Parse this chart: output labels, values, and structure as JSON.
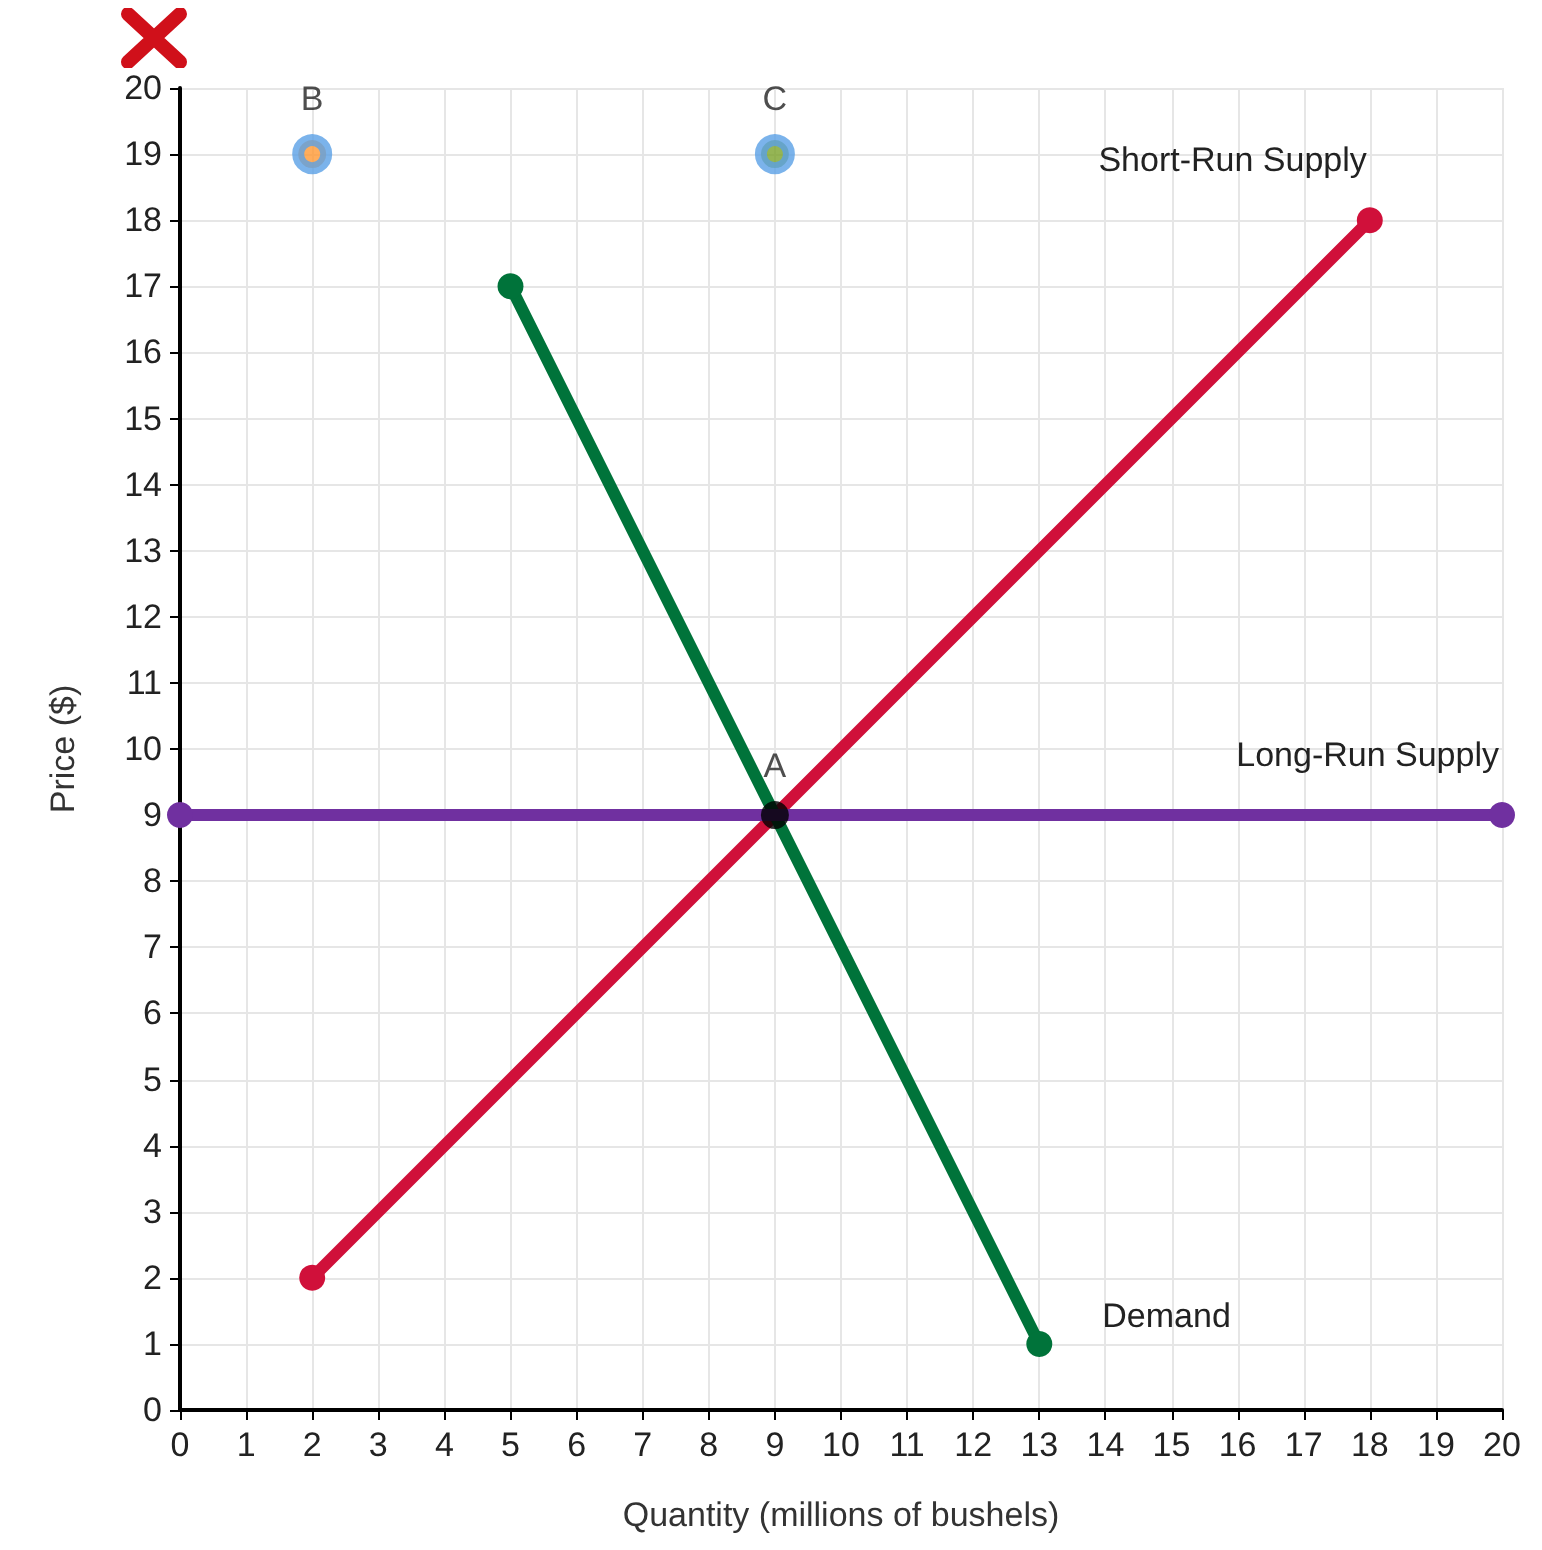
{
  "chart_data": {
    "type": "line",
    "xlabel": "Quantity (millions of bushels)",
    "ylabel": "Price ($)",
    "xlim": [
      0,
      20
    ],
    "ylim": [
      0,
      20
    ],
    "xticks": [
      0,
      1,
      2,
      3,
      4,
      5,
      6,
      7,
      8,
      9,
      10,
      11,
      12,
      13,
      14,
      15,
      16,
      17,
      18,
      19,
      20
    ],
    "yticks": [
      0,
      1,
      2,
      3,
      4,
      5,
      6,
      7,
      8,
      9,
      10,
      11,
      12,
      13,
      14,
      15,
      16,
      17,
      18,
      19,
      20
    ],
    "grid": true,
    "legend": false,
    "marker": "circle",
    "line_style": "solid",
    "series": [
      {
        "name": "Short-Run Supply",
        "color": "#d0103a",
        "x": [
          2,
          18
        ],
        "values": [
          2,
          18
        ]
      },
      {
        "name": "Demand",
        "color": "#00733a",
        "x": [
          5,
          13
        ],
        "values": [
          17,
          1
        ]
      },
      {
        "name": "Long-Run Supply",
        "color": "#7030a0",
        "x": [
          0,
          20
        ],
        "values": [
          9,
          9
        ]
      },
      {
        "name": "A",
        "type": "scatter",
        "color": "#000000",
        "x": [
          9
        ],
        "values": [
          9
        ]
      },
      {
        "name": "B",
        "type": "scatter",
        "color": "#ff9933",
        "x": [
          2
        ],
        "values": [
          19
        ]
      },
      {
        "name": "C",
        "type": "scatter",
        "color": "#7aa32a",
        "x": [
          9
        ],
        "values": [
          19
        ]
      }
    ]
  }
}
